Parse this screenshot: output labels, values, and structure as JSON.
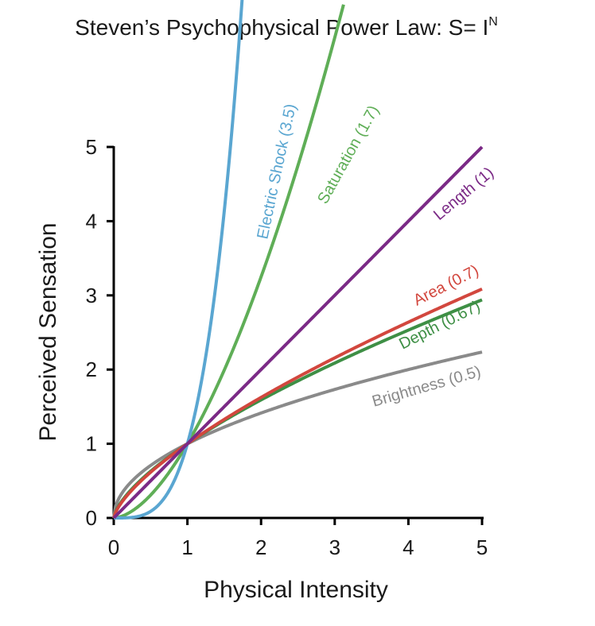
{
  "chart_data": {
    "type": "line",
    "title": "Steven’s Psychophysical Power Law: S= I",
    "title_superscript": "N",
    "xlabel": "Physical Intensity",
    "ylabel": "Perceived Sensation",
    "xlim": [
      0,
      5
    ],
    "ylim": [
      0,
      5
    ],
    "x_ticks": [
      "0",
      "1",
      "2",
      "3",
      "4",
      "5"
    ],
    "y_ticks": [
      "0",
      "1",
      "2",
      "3",
      "4",
      "5"
    ],
    "grid": false,
    "legend": "inline labels on curves",
    "series": [
      {
        "name": "Electric Shock (3.5)",
        "exponent": 3.5,
        "color": "#5aa6d1",
        "x_max": 1.92
      },
      {
        "name": "Saturation (1.7)",
        "exponent": 1.7,
        "color": "#5fae57",
        "x_max": 3.12
      },
      {
        "name": "Length (1)",
        "exponent": 1.0,
        "color": "#7b2a86",
        "x_max": 5
      },
      {
        "name": "Area (0.7)",
        "exponent": 0.7,
        "color": "#d2473e",
        "x_max": 5
      },
      {
        "name": "Depth (0.67)",
        "exponent": 0.67,
        "color": "#3e8f45",
        "x_max": 5
      },
      {
        "name": "Brightness (0.5)",
        "exponent": 0.5,
        "color": "#8a8a8a",
        "x_max": 5
      }
    ]
  }
}
